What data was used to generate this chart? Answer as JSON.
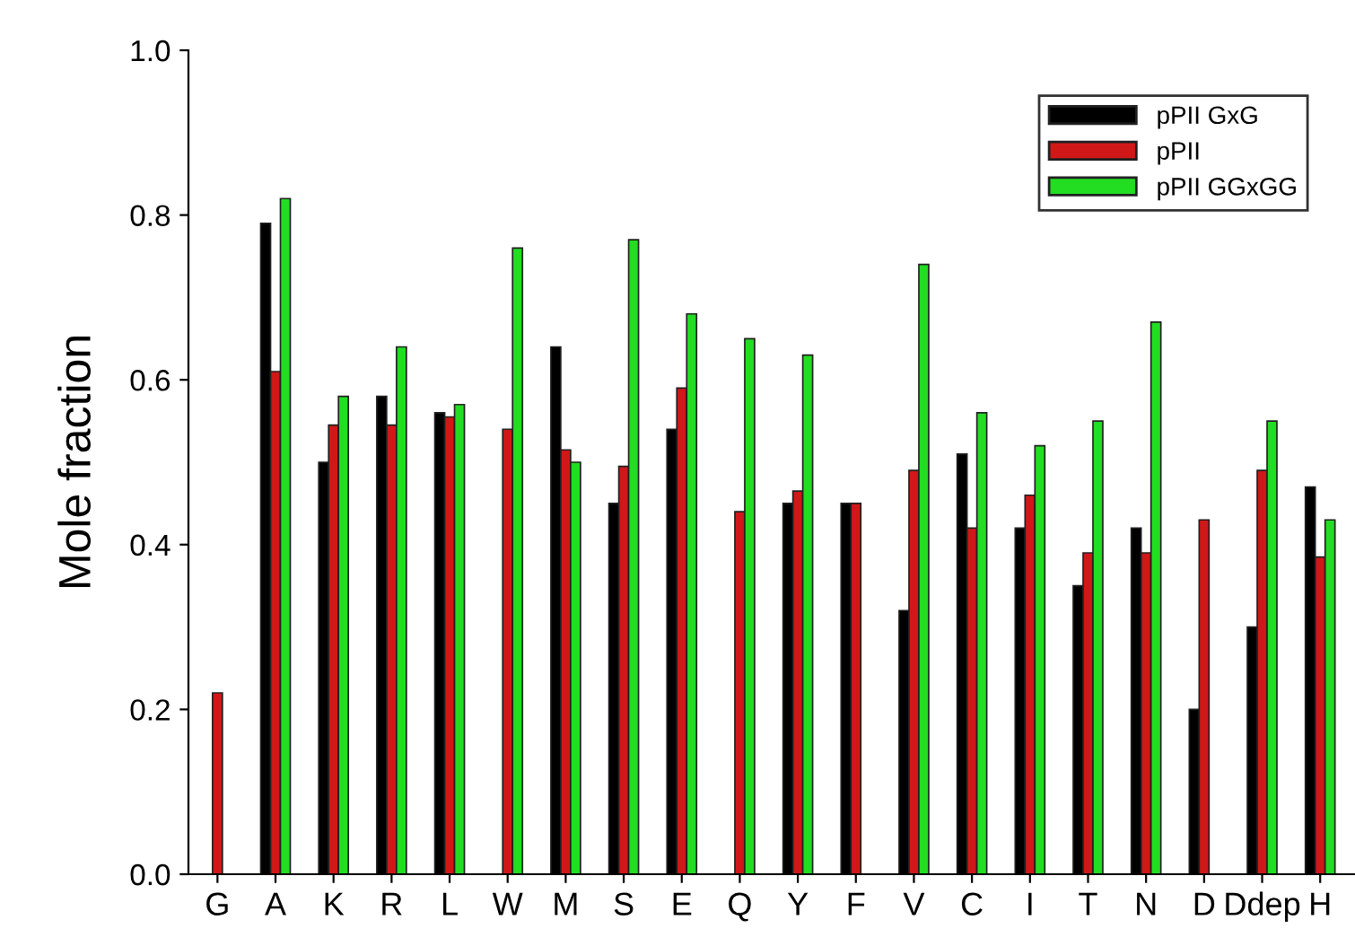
{
  "chart_data": {
    "type": "bar",
    "ylabel": "Mole fraction",
    "categories": [
      "G",
      "A",
      "K",
      "R",
      "L",
      "W",
      "M",
      "S",
      "E",
      "Q",
      "Y",
      "F",
      "V",
      "C",
      "I",
      "T",
      "N",
      "D",
      "Ddep",
      "H"
    ],
    "series": [
      {
        "name": "pPII GxG",
        "color": "#000000",
        "values": [
          null,
          0.79,
          0.5,
          0.58,
          0.56,
          null,
          0.64,
          0.45,
          0.54,
          null,
          0.45,
          0.45,
          0.32,
          0.51,
          0.42,
          0.35,
          0.42,
          0.2,
          0.3,
          0.47
        ]
      },
      {
        "name": "pPII",
        "color": "#d01818",
        "values": [
          0.22,
          0.61,
          0.545,
          0.545,
          0.555,
          0.54,
          0.515,
          0.495,
          0.59,
          0.44,
          0.465,
          0.45,
          0.49,
          0.42,
          0.46,
          0.39,
          0.39,
          0.43,
          0.49,
          0.385
        ]
      },
      {
        "name": "pPII GGxGG",
        "color": "#22dd22",
        "values": [
          null,
          0.82,
          0.58,
          0.64,
          0.57,
          0.76,
          0.5,
          0.77,
          0.68,
          0.65,
          0.63,
          null,
          0.74,
          0.56,
          0.52,
          0.55,
          0.67,
          null,
          0.55,
          0.43
        ]
      }
    ],
    "ylim": [
      0,
      1
    ],
    "yticks": [
      {
        "value": 0,
        "label": "0.0"
      },
      {
        "value": 0.2,
        "label": "0.2"
      },
      {
        "value": 0.4,
        "label": "0.4"
      },
      {
        "value": 0.6,
        "label": "0.6"
      },
      {
        "value": 0.8,
        "label": "0.8"
      },
      {
        "value": 1,
        "label": "1.0"
      }
    ],
    "grid": false,
    "legend": "top right"
  }
}
